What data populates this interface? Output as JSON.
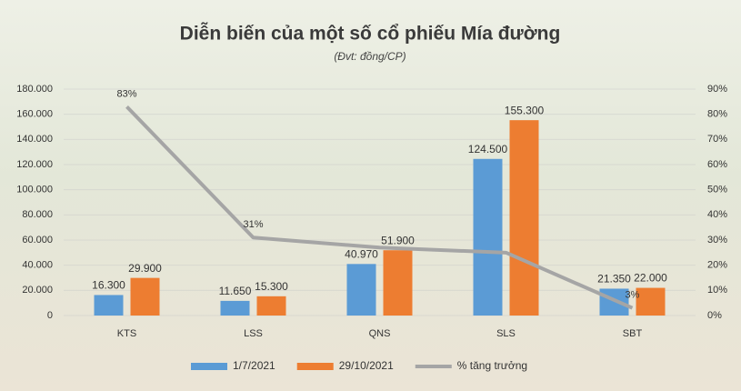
{
  "chart_data": {
    "type": "bar",
    "title": "Diễn biến của một số cổ phiếu Mía đường",
    "subtitle": "(Đvt: đồng/CP)",
    "categories": [
      "KTS",
      "LSS",
      "QNS",
      "SLS",
      "SBT"
    ],
    "series": [
      {
        "name": "1/7/2021",
        "color": "#5b9bd5",
        "values": [
          16300,
          11650,
          40970,
          124500,
          21350
        ],
        "value_labels": [
          "16.300",
          "11.650",
          "40.970",
          "124.500",
          "21.350"
        ]
      },
      {
        "name": "29/10/2021",
        "color": "#ed7d31",
        "values": [
          29900,
          15300,
          51900,
          155300,
          22000
        ],
        "value_labels": [
          "29.900",
          "15.300",
          "51.900",
          "155.300",
          "22.000"
        ]
      },
      {
        "name": "% tăng trưởng",
        "color": "#a5a5a5",
        "axis": "y2",
        "type": "line",
        "values": [
          83,
          31,
          27,
          25,
          3
        ],
        "value_labels": [
          "83%",
          "31%",
          null,
          null,
          "3%"
        ]
      }
    ],
    "ylim": [
      0,
      180000
    ],
    "yticks": [
      0,
      {
        "value": 20000,
        "label": "20.000"
      },
      {
        "value": 40000,
        "label": "40.000"
      },
      {
        "value": 60000,
        "label": "60.000"
      },
      {
        "value": 80000,
        "label": "80.000"
      },
      {
        "value": 100000,
        "label": "100.000"
      },
      {
        "value": 120000,
        "label": "120.000"
      },
      {
        "value": 140000,
        "label": "140.000"
      },
      {
        "value": 160000,
        "label": "160.000"
      },
      {
        "value": 180000,
        "label": "180.000"
      }
    ],
    "y2lim": [
      0,
      90
    ],
    "y2ticks": [
      {
        "value": 0,
        "label": "0%"
      },
      {
        "value": 10,
        "label": "10%"
      },
      {
        "value": 20,
        "label": "20%"
      },
      {
        "value": 30,
        "label": "30%"
      },
      {
        "value": 40,
        "label": "40%"
      },
      {
        "value": 50,
        "label": "50%"
      },
      {
        "value": 60,
        "label": "60%"
      },
      {
        "value": 70,
        "label": "70%"
      },
      {
        "value": 80,
        "label": "80%"
      },
      {
        "value": 90,
        "label": "90%"
      }
    ],
    "grid": true,
    "legend": "bottom"
  }
}
